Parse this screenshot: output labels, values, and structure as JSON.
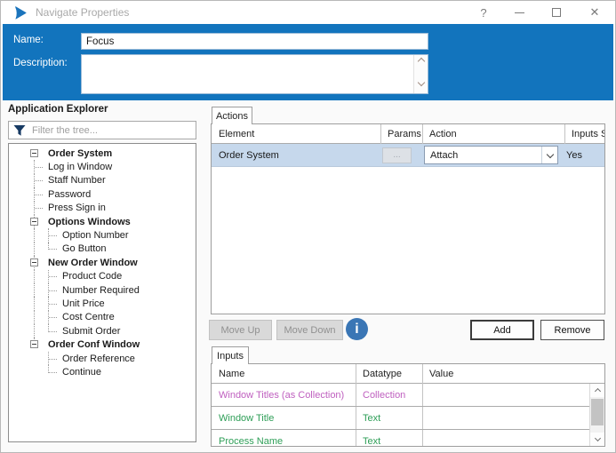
{
  "window": {
    "title": "Navigate Properties",
    "help_glyph": "?",
    "close_glyph": "✕"
  },
  "header": {
    "name_label": "Name:",
    "name_value": "Focus",
    "description_label": "Description:",
    "description_value": ""
  },
  "explorer": {
    "title": "Application Explorer",
    "filter_placeholder": "Filter the tree...",
    "tree": [
      {
        "label": "Order System",
        "bold": true,
        "tokens": [
          "exp"
        ]
      },
      {
        "label": "Log in Window",
        "bold": false,
        "tokens": [
          "elbow"
        ]
      },
      {
        "label": "Staff Number",
        "bold": false,
        "tokens": [
          "elbow"
        ]
      },
      {
        "label": "Password",
        "bold": false,
        "tokens": [
          "elbow"
        ]
      },
      {
        "label": "Press Sign in",
        "bold": false,
        "tokens": [
          "elbow"
        ]
      },
      {
        "label": "Options Windows",
        "bold": true,
        "tokens": [
          "expg"
        ]
      },
      {
        "label": "Option Number",
        "bold": false,
        "tokens": [
          "rail",
          "elbow"
        ]
      },
      {
        "label": "Go Button",
        "bold": false,
        "tokens": [
          "rail",
          "end"
        ]
      },
      {
        "label": "New Order Window",
        "bold": true,
        "tokens": [
          "expg"
        ]
      },
      {
        "label": "Product Code",
        "bold": false,
        "tokens": [
          "rail",
          "elbow"
        ]
      },
      {
        "label": "Number Required",
        "bold": false,
        "tokens": [
          "rail",
          "elbow"
        ]
      },
      {
        "label": "Unit Price",
        "bold": false,
        "tokens": [
          "rail",
          "elbow"
        ]
      },
      {
        "label": "Cost Centre",
        "bold": false,
        "tokens": [
          "rail",
          "elbow"
        ]
      },
      {
        "label": "Submit Order",
        "bold": false,
        "tokens": [
          "rail",
          "end"
        ]
      },
      {
        "label": "Order Conf Window",
        "bold": true,
        "tokens": [
          "expg_end"
        ]
      },
      {
        "label": "Order Reference",
        "bold": false,
        "tokens": [
          "gap",
          "elbow"
        ]
      },
      {
        "label": "Continue",
        "bold": false,
        "tokens": [
          "gap",
          "end"
        ]
      }
    ]
  },
  "actions": {
    "tab_label": "Actions",
    "columns": [
      "Element",
      "Params",
      "Action",
      "Inputs S.."
    ],
    "row": {
      "element": "Order System",
      "params_label": "...",
      "action": "Attach",
      "inputs_set": "Yes"
    },
    "move_up_label": "Move Up",
    "move_down_label": "Move Down",
    "info_glyph": "i",
    "add_label": "Add",
    "remove_label": "Remove"
  },
  "inputs": {
    "tab_label": "Inputs",
    "columns": [
      "Name",
      "Datatype",
      "Value"
    ],
    "rows": [
      {
        "name": "Window Titles (as Collection)",
        "datatype": "Collection",
        "value": "",
        "color": "#bf5fbf"
      },
      {
        "name": "Window Title",
        "datatype": "Text",
        "value": "",
        "color": "#2e9e57"
      },
      {
        "name": "Process Name",
        "datatype": "Text",
        "value": "",
        "color": "#2e9e57"
      }
    ]
  },
  "colors": {
    "accent_blue": "#1274bd",
    "selected_row": "#c6d8ec",
    "collection_type": "#bf5fbf",
    "text_type": "#2e9e57",
    "info_icon_blue": "#3a76b5"
  }
}
